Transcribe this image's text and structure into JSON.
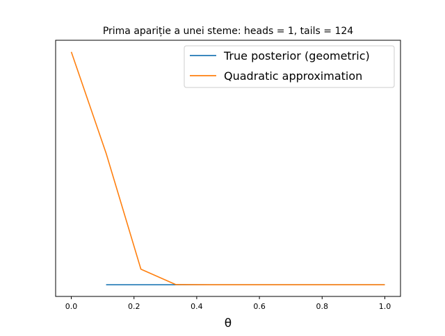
{
  "chart_data": {
    "type": "line",
    "title": "Prima apariție a unei steme: heads = 1, tails = 124",
    "xlabel": "θ",
    "ylabel": "",
    "xlim": [
      -0.05,
      1.05
    ],
    "ylim": [
      -0.05,
      1.05
    ],
    "y_ticks_visible": false,
    "grid": false,
    "legend_position": "upper right",
    "x_ticks": [
      {
        "value": 0.0,
        "label": "0.0"
      },
      {
        "value": 0.2,
        "label": "0.2"
      },
      {
        "value": 0.4,
        "label": "0.4"
      },
      {
        "value": 0.6,
        "label": "0.6"
      },
      {
        "value": 0.8,
        "label": "0.8"
      },
      {
        "value": 1.0,
        "label": "1.0"
      }
    ],
    "series": [
      {
        "name": "True posterior (geometric)",
        "color": "#1f77b4",
        "x": [
          0.111,
          0.222,
          0.333,
          0.444,
          0.556,
          0.667,
          0.778,
          0.889,
          1.0
        ],
        "y": [
          0.0,
          0.0,
          0.0,
          0.0,
          0.0,
          0.0,
          0.0,
          0.0,
          0.0
        ]
      },
      {
        "name": "Quadratic approximation",
        "color": "#ff7f0e",
        "x": [
          0.0,
          0.111,
          0.222,
          0.333,
          0.444,
          0.556,
          0.667,
          0.778,
          0.889,
          1.0
        ],
        "y": [
          1.0,
          0.565,
          0.067,
          0.001,
          0.0,
          0.0,
          0.0,
          0.0,
          0.0,
          0.0
        ]
      }
    ]
  }
}
